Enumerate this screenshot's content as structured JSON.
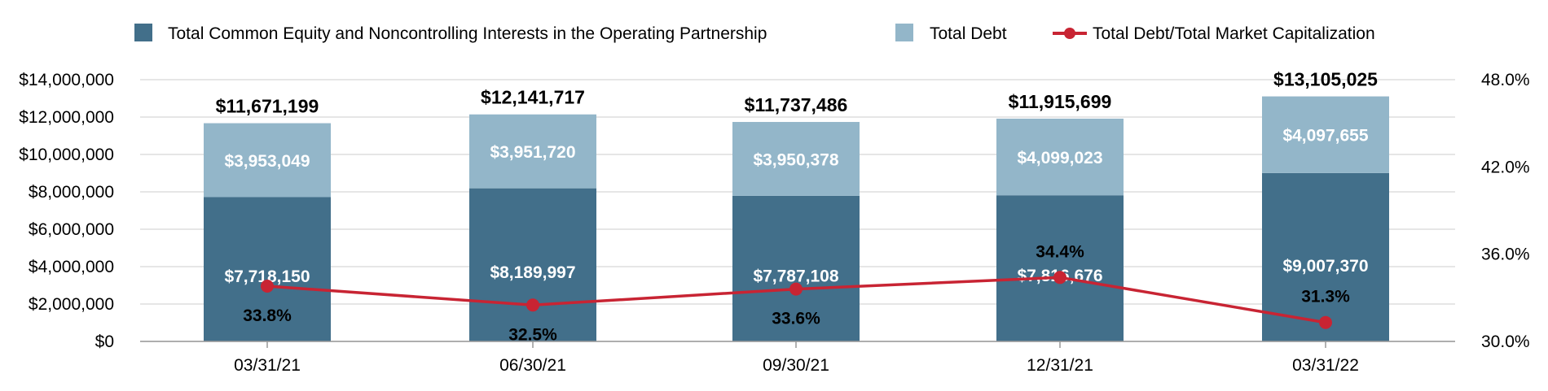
{
  "colors": {
    "equity": "#426f8a",
    "debt": "#93b6c9",
    "ratio_line": "#c82433",
    "grid": "#dddddd",
    "axis": "#999999"
  },
  "legend": {
    "equity_label": "Total Common Equity and Noncontrolling Interests in the Operating Partnership",
    "debt_label": "Total Debt",
    "ratio_label": "Total Debt/Total Market Capitalization"
  },
  "chart_data": {
    "type": "bar",
    "stacked": true,
    "categories": [
      "03/31/21",
      "06/30/21",
      "09/30/21",
      "12/31/21",
      "03/31/22"
    ],
    "series": [
      {
        "name": "Total Common Equity and Noncontrolling Interests in the Operating Partnership",
        "values": [
          7718150,
          8189997,
          7787108,
          7816676,
          9007370
        ],
        "labels": [
          "$7,718,150",
          "$8,189,997",
          "$7,787,108",
          "$7,816,676",
          "$9,007,370"
        ]
      },
      {
        "name": "Total Debt",
        "values": [
          3953049,
          3951720,
          3950378,
          4099023,
          4097655
        ],
        "labels": [
          "$3,953,049",
          "$3,951,720",
          "$3,950,378",
          "$4,099,023",
          "$4,097,655"
        ]
      }
    ],
    "totals": {
      "values": [
        11671199,
        12141717,
        11737486,
        11915699,
        13105025
      ],
      "labels": [
        "$11,671,199",
        "$12,141,717",
        "$11,737,486",
        "$11,915,699",
        "$13,105,025"
      ]
    },
    "line_series": {
      "name": "Total Debt/Total Market Capitalization",
      "axis": "right",
      "values": [
        33.8,
        32.5,
        33.6,
        34.4,
        31.3
      ],
      "labels": [
        "33.8%",
        "32.5%",
        "33.6%",
        "34.4%",
        "31.3%"
      ]
    },
    "y_left": {
      "ylim": [
        0,
        14000000
      ],
      "ticks": [
        0,
        2000000,
        4000000,
        6000000,
        8000000,
        10000000,
        12000000,
        14000000
      ],
      "tick_labels": [
        "$0",
        "$2,000,000",
        "$4,000,000",
        "$6,000,000",
        "$8,000,000",
        "$10,000,000",
        "$12,000,000",
        "$14,000,000"
      ]
    },
    "y_right": {
      "ylim": [
        30,
        48
      ],
      "ticks": [
        30,
        36,
        42,
        48
      ],
      "tick_labels": [
        "30.0%",
        "36.0%",
        "42.0%",
        "48.0%"
      ]
    },
    "grid": true,
    "legend_position": "top"
  }
}
